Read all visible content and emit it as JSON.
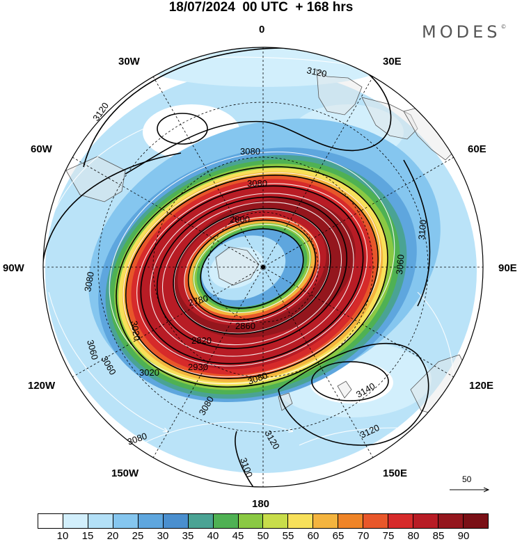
{
  "title": "18/07/2024  00 UTC  + 168 hrs",
  "logo": "MODES",
  "logo_mark": "©",
  "longitude_labels": {
    "lon_0": "0",
    "lon_30e": "30E",
    "lon_60e": "60E",
    "lon_90e": "90E",
    "lon_120e": "120E",
    "lon_150e": "150E",
    "lon_180": "180",
    "lon_150w": "150W",
    "lon_120w": "120W",
    "lon_90w": "90W",
    "lon_60w": "60W",
    "lon_30w": "30W"
  },
  "contour_labels": [
    "3120",
    "3120",
    "3080",
    "3080",
    "2800",
    "3100",
    "3060",
    "3080",
    "3060",
    "3060",
    "2780",
    "2860",
    "2820",
    "3020",
    "3080",
    "3080",
    "3140",
    "3120",
    "3120",
    "3080",
    "3100",
    "2930",
    "3020"
  ],
  "reference_vector_label": "50",
  "colorbar": {
    "labels": [
      "10",
      "15",
      "20",
      "25",
      "30",
      "35",
      "40",
      "45",
      "50",
      "55",
      "60",
      "65",
      "70",
      "75",
      "80",
      "85",
      "90"
    ],
    "colors": [
      "#ffffff",
      "#d2effc",
      "#b3e0f7",
      "#85c6ef",
      "#5ea6de",
      "#4a8fcf",
      "#4aa394",
      "#4fb153",
      "#8ac943",
      "#c8dd4a",
      "#f7e05a",
      "#f4b43e",
      "#ef8427",
      "#e8572a",
      "#d62a2a",
      "#b81c25",
      "#94161d"
    ]
  },
  "colors": {
    "jet_core": "#b81c25",
    "land_outline": "#555555"
  }
}
